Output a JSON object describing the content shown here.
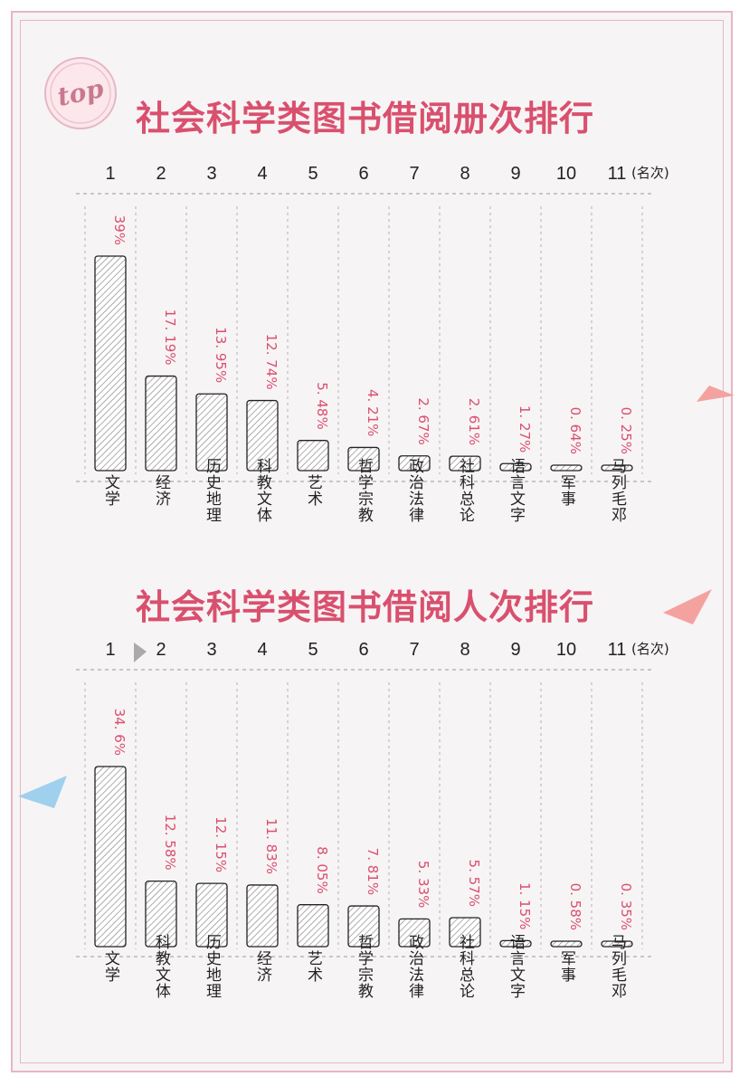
{
  "colors": {
    "accent": "#d9506e",
    "frame": "#e6b6c3",
    "text": "#222222",
    "bar_stroke": "#222222",
    "hatch": "#8a8a8a",
    "blue_deco": "#9fd0ee",
    "pink_deco": "#f4a2a0"
  },
  "badge": {
    "text": "top"
  },
  "chart_data": [
    {
      "type": "bar",
      "title": "社会科学类图书借阅册次排行",
      "rank_labels": [
        "1",
        "2",
        "3",
        "4",
        "5",
        "6",
        "7",
        "8",
        "9",
        "10",
        "11"
      ],
      "rank_unit": "(名次)",
      "categories": [
        "文学",
        "经济",
        "历史地理",
        "科教文体",
        "艺术",
        "哲学宗教",
        "政治法律",
        "社科总论",
        "语言文字",
        "军事",
        "马列毛邓"
      ],
      "values": [
        39,
        17.19,
        13.95,
        12.74,
        5.48,
        4.21,
        2.67,
        2.61,
        1.27,
        0.64,
        0.25
      ],
      "value_labels": [
        "39%",
        "17. 19%",
        "13. 95%",
        "12. 74%",
        "5. 48%",
        "4. 21%",
        "2. 67%",
        "2. 61%",
        "1. 27%",
        "0. 64%",
        "0. 25%"
      ]
    },
    {
      "type": "bar",
      "title": "社会科学类图书借阅人次排行",
      "rank_labels": [
        "1",
        "2",
        "3",
        "4",
        "5",
        "6",
        "7",
        "8",
        "9",
        "10",
        "11"
      ],
      "rank_unit": "(名次)",
      "categories": [
        "文学",
        "科教文体",
        "历史地理",
        "经济",
        "艺术",
        "哲学宗教",
        "政治法律",
        "社科总论",
        "语言文字",
        "军事",
        "马列毛邓"
      ],
      "values": [
        34.6,
        12.58,
        12.15,
        11.83,
        8.05,
        7.81,
        5.33,
        5.57,
        1.15,
        0.58,
        0.35
      ],
      "value_labels": [
        "34. 6%",
        "12. 58%",
        "12. 15%",
        "11. 83%",
        "8. 05%",
        "7. 81%",
        "5. 33%",
        "5. 57%",
        "1. 15%",
        "0. 58%",
        "0. 35%"
      ]
    }
  ]
}
